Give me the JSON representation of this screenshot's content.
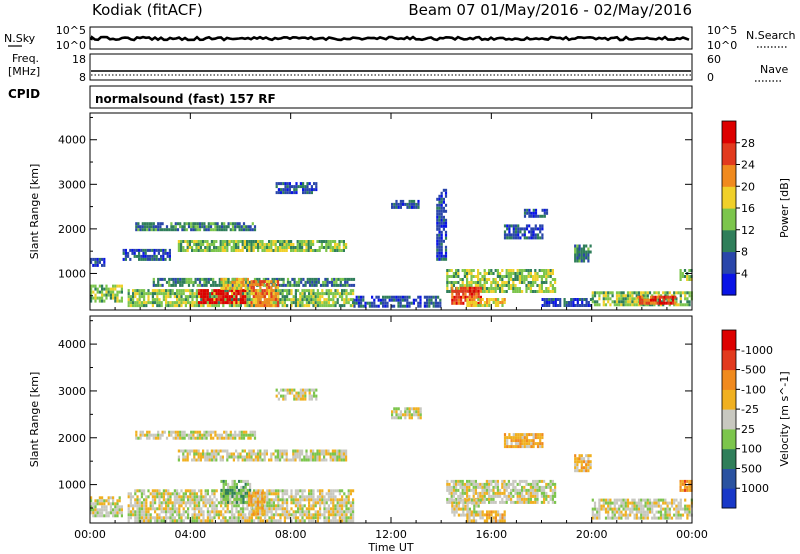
{
  "header": {
    "station": "Kodiak (fitACF)",
    "beam_info": "Beam 07 01/May/2016 - 02/May/2016"
  },
  "strip_labels": {
    "nsky": "N.Sky",
    "freq_line1": "Freq.",
    "freq_line2": "[MHz]",
    "cpid": "CPID",
    "nsearch": "N.Search",
    "nave": "Nave",
    "noise_left_top": "10^5",
    "noise_left_bottom": "10^0",
    "noise_right_top": "10^5",
    "noise_right_bottom": "10^0",
    "freq_top": "18",
    "freq_bottom": "8",
    "nave_top": "60",
    "nave_bottom": "0",
    "program": "normalsound (fast) 157 RF"
  },
  "chart_data": [
    {
      "type": "heatmap",
      "ylabel": "Slant Range [km]",
      "xlabel": "",
      "x_ticks": [
        "00:00",
        "04:00",
        "08:00",
        "12:00",
        "16:00",
        "20:00",
        "00:00"
      ],
      "y_ticks": [
        1000,
        2000,
        3000,
        4000
      ],
      "xlim_hours": [
        0,
        24
      ],
      "ylim_km": [
        180,
        4600
      ],
      "colorbar": {
        "label": "Power [dB]",
        "ticks": [
          "4",
          "8",
          "12",
          "16",
          "20",
          "24",
          "28"
        ],
        "colors": [
          "#0a14e6",
          "#2a46aa",
          "#2f7e5a",
          "#7cc54c",
          "#f0d02a",
          "#f08a1e",
          "#e23a1e",
          "#dd0000"
        ]
      },
      "regions": [
        {
          "t0": 0.0,
          "t1": 1.3,
          "r0": 350,
          "r1": 750,
          "level": 3
        },
        {
          "t0": 0.0,
          "t1": 0.6,
          "r0": 1150,
          "r1": 1350,
          "level": 1
        },
        {
          "t0": 1.8,
          "t1": 6.6,
          "r0": 2000,
          "r1": 2150,
          "level": 2
        },
        {
          "t0": 1.3,
          "t1": 3.2,
          "r0": 1300,
          "r1": 1550,
          "level": 1
        },
        {
          "t0": 3.5,
          "t1": 10.2,
          "r0": 1500,
          "r1": 1750,
          "level": 3
        },
        {
          "t0": 7.4,
          "t1": 9.0,
          "r0": 2800,
          "r1": 3050,
          "level": 1
        },
        {
          "t0": 12.0,
          "t1": 13.2,
          "r0": 2450,
          "r1": 2650,
          "level": 1
        },
        {
          "t0": 2.5,
          "t1": 10.5,
          "r0": 700,
          "r1": 900,
          "level": 2
        },
        {
          "t0": 1.5,
          "t1": 10.5,
          "r0": 250,
          "r1": 650,
          "level": 3
        },
        {
          "t0": 4.3,
          "t1": 6.2,
          "r0": 350,
          "r1": 650,
          "level": 7
        },
        {
          "t0": 5.2,
          "t1": 6.4,
          "r0": 650,
          "r1": 900,
          "level": 4
        },
        {
          "t0": 6.4,
          "t1": 7.5,
          "r0": 300,
          "r1": 850,
          "level": 5
        },
        {
          "t0": 10.5,
          "t1": 14.0,
          "r0": 250,
          "r1": 500,
          "level": 1
        },
        {
          "t0": 14.2,
          "t1": 18.5,
          "r0": 600,
          "r1": 1100,
          "level": 3
        },
        {
          "t0": 14.4,
          "t1": 15.6,
          "r0": 350,
          "r1": 700,
          "level": 6
        },
        {
          "t0": 15.0,
          "t1": 16.5,
          "r0": 250,
          "r1": 450,
          "level": 4
        },
        {
          "t0": 18.0,
          "t1": 20.0,
          "r0": 250,
          "r1": 450,
          "level": 1
        },
        {
          "t0": 20.0,
          "t1": 24.0,
          "r0": 300,
          "r1": 600,
          "level": 3
        },
        {
          "t0": 21.8,
          "t1": 23.4,
          "r0": 350,
          "r1": 500,
          "level": 6
        },
        {
          "t0": 16.5,
          "t1": 18.0,
          "r0": 1800,
          "r1": 2100,
          "level": 1
        },
        {
          "t0": 17.3,
          "t1": 18.2,
          "r0": 2250,
          "r1": 2450,
          "level": 1
        },
        {
          "t0": 19.3,
          "t1": 20.0,
          "r0": 1300,
          "r1": 1650,
          "level": 2
        },
        {
          "t0": 13.8,
          "t1": 14.2,
          "r0": 1300,
          "r1": 2900,
          "level": 1
        },
        {
          "t0": 23.5,
          "t1": 24.0,
          "r0": 850,
          "r1": 1100,
          "level": 3
        }
      ]
    },
    {
      "type": "heatmap",
      "ylabel": "Slant Range [km]",
      "xlabel": "Time UT",
      "x_ticks": [
        "00:00",
        "04:00",
        "08:00",
        "12:00",
        "16:00",
        "20:00",
        "00:00"
      ],
      "y_ticks": [
        1000,
        2000,
        3000,
        4000
      ],
      "xlim_hours": [
        0,
        24
      ],
      "ylim_km": [
        180,
        4600
      ],
      "colorbar": {
        "label": "Velocity [m s^-1]",
        "ticks": [
          "1000",
          "500",
          "100",
          "25",
          "-25",
          "-100",
          "-500",
          "-1000"
        ],
        "colors": [
          "#1838c8",
          "#2a52a0",
          "#2f7e5a",
          "#7cc54c",
          "#c8c8c0",
          "#f0b020",
          "#f08a1e",
          "#e23a1e",
          "#dd0000"
        ]
      },
      "regions": [
        {
          "t0": 0.0,
          "t1": 1.3,
          "r0": 350,
          "r1": 750,
          "level": 4
        },
        {
          "t0": 1.8,
          "t1": 6.6,
          "r0": 2000,
          "r1": 2150,
          "level": 4
        },
        {
          "t0": 3.5,
          "t1": 10.2,
          "r0": 1500,
          "r1": 1750,
          "level": 4
        },
        {
          "t0": 7.4,
          "t1": 9.0,
          "r0": 2800,
          "r1": 3050,
          "level": 4
        },
        {
          "t0": 12.0,
          "t1": 13.2,
          "r0": 2450,
          "r1": 2650,
          "level": 4
        },
        {
          "t0": 1.5,
          "t1": 10.5,
          "r0": 250,
          "r1": 900,
          "level": 4
        },
        {
          "t0": 5.2,
          "t1": 6.4,
          "r0": 650,
          "r1": 1100,
          "level": 3
        },
        {
          "t0": 6.3,
          "t1": 7.0,
          "r0": 400,
          "r1": 850,
          "level": 5
        },
        {
          "t0": 14.2,
          "t1": 18.5,
          "r0": 600,
          "r1": 1100,
          "level": 4
        },
        {
          "t0": 14.4,
          "t1": 15.6,
          "r0": 350,
          "r1": 700,
          "level": 4
        },
        {
          "t0": 15.0,
          "t1": 16.5,
          "r0": 250,
          "r1": 450,
          "level": 5
        },
        {
          "t0": 20.0,
          "t1": 24.0,
          "r0": 300,
          "r1": 700,
          "level": 4
        },
        {
          "t0": 19.3,
          "t1": 20.0,
          "r0": 1300,
          "r1": 1650,
          "level": 5
        },
        {
          "t0": 16.5,
          "t1": 18.0,
          "r0": 1800,
          "r1": 2100,
          "level": 5
        },
        {
          "t0": 23.5,
          "t1": 24.0,
          "r0": 850,
          "r1": 1100,
          "level": 6
        }
      ]
    }
  ]
}
